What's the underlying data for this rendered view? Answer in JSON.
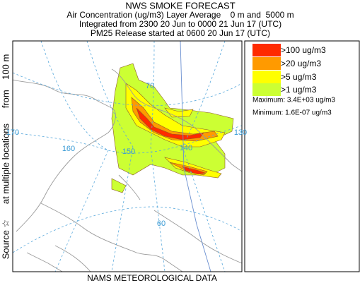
{
  "title": "NWS SMOKE FORECAST",
  "subtitle_lines": [
    "Air Concentration (ug/m3) Layer Average    0 m and  5000 m",
    "Integrated from 2300 20 Jun to 0000 21 Jun 17 (UTC)",
    "PM25 Release started at 0600 20 Jun 17 (UTC)"
  ],
  "side_label": "Source ☆      at multiple locations      from    100 m",
  "legend": [
    {
      "label": ">100 ug/m3",
      "color": "#ff2a00"
    },
    {
      "label": ">20 ug/m3",
      "color": "#ff9a00"
    },
    {
      "label": ">5 ug/m3",
      "color": "#ffff00"
    },
    {
      "label": ">1 ug/m3",
      "color": "#ccff33"
    }
  ],
  "stats": [
    "Maximum: 3.4E+03 ug/m3",
    "Minimum: 1.6E-07 ug/m3"
  ],
  "map_labels": [
    "170",
    "160",
    "150",
    "140",
    "130",
    "70",
    "60"
  ],
  "footer": "NAMS METEOROLOGICAL DATA"
}
